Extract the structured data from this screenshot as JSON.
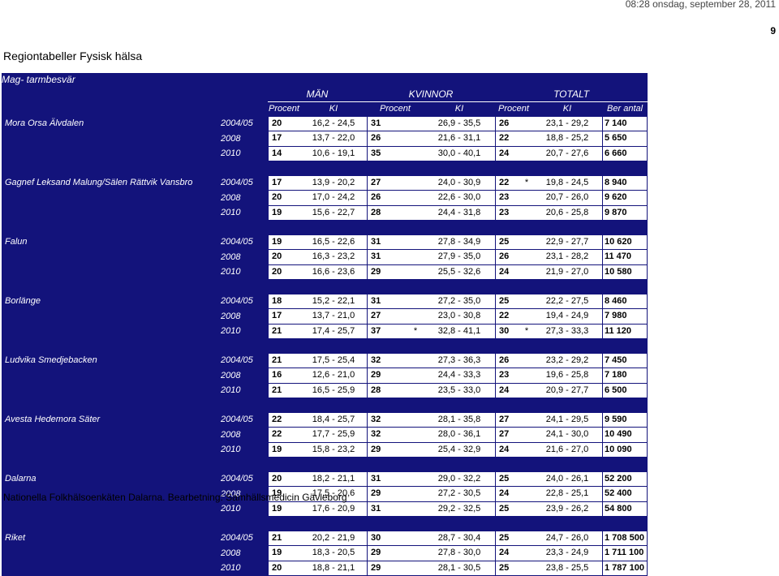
{
  "clock": "08:28  onsdag, september 28, 2011",
  "page_number": "9",
  "page_title": "Regiontabeller Fysisk hälsa",
  "table": {
    "caption": "Mag- tarmbesvär",
    "groups": [
      "MÄN",
      "KVINNOR",
      "TOTALT"
    ],
    "subheaders": [
      "Procent",
      "KI",
      "Procent",
      "KI",
      "Procent",
      "KI",
      "Ber antal"
    ],
    "regions": [
      {
        "name": "Mora Orsa Älvdalen",
        "rows": [
          {
            "year": "2004/05",
            "m_pct": "20",
            "m_star": "",
            "m_ki": "16,2  -  24,5",
            "k_pct": "31",
            "k_star": "",
            "k_ki": "26,9  -  35,5",
            "t_pct": "26",
            "t_star": "",
            "t_ki": "23,1  -  29,2",
            "ber": "7 140"
          },
          {
            "year": "2008",
            "m_pct": "17",
            "m_star": "",
            "m_ki": "13,7  -  22,0",
            "k_pct": "26",
            "k_star": "",
            "k_ki": "21,6  -  31,1",
            "t_pct": "22",
            "t_star": "",
            "t_ki": "18,8  -  25,2",
            "ber": "5 650"
          },
          {
            "year": "2010",
            "m_pct": "14",
            "m_star": "",
            "m_ki": "10,6  -  19,1",
            "k_pct": "35",
            "k_star": "",
            "k_ki": "30,0  -  40,1",
            "t_pct": "24",
            "t_star": "",
            "t_ki": "20,7  -  27,6",
            "ber": "6 660"
          }
        ]
      },
      {
        "name": "Gagnef Leksand Malung/Sälen Rättvik Vansbro",
        "rows": [
          {
            "year": "2004/05",
            "m_pct": "17",
            "m_star": "",
            "m_ki": "13,9  -  20,2",
            "k_pct": "27",
            "k_star": "",
            "k_ki": "24,0  -  30,9",
            "t_pct": "22",
            "t_star": "*",
            "t_ki": "19,8  -  24,5",
            "ber": "8 940"
          },
          {
            "year": "2008",
            "m_pct": "20",
            "m_star": "",
            "m_ki": "17,0  -  24,2",
            "k_pct": "26",
            "k_star": "",
            "k_ki": "22,6  -  30,0",
            "t_pct": "23",
            "t_star": "",
            "t_ki": "20,7  -  26,0",
            "ber": "9 620"
          },
          {
            "year": "2010",
            "m_pct": "19",
            "m_star": "",
            "m_ki": "15,6  -  22,7",
            "k_pct": "28",
            "k_star": "",
            "k_ki": "24,4  -  31,8",
            "t_pct": "23",
            "t_star": "",
            "t_ki": "20,6  -  25,8",
            "ber": "9 870"
          }
        ]
      },
      {
        "name": "Falun",
        "rows": [
          {
            "year": "2004/05",
            "m_pct": "19",
            "m_star": "",
            "m_ki": "16,5  -  22,6",
            "k_pct": "31",
            "k_star": "",
            "k_ki": "27,8  -  34,9",
            "t_pct": "25",
            "t_star": "",
            "t_ki": "22,9  -  27,7",
            "ber": "10 620"
          },
          {
            "year": "2008",
            "m_pct": "20",
            "m_star": "",
            "m_ki": "16,3  -  23,2",
            "k_pct": "31",
            "k_star": "",
            "k_ki": "27,9  -  35,0",
            "t_pct": "26",
            "t_star": "",
            "t_ki": "23,1  -  28,2",
            "ber": "11 470"
          },
          {
            "year": "2010",
            "m_pct": "20",
            "m_star": "",
            "m_ki": "16,6  -  23,6",
            "k_pct": "29",
            "k_star": "",
            "k_ki": "25,5  -  32,6",
            "t_pct": "24",
            "t_star": "",
            "t_ki": "21,9  -  27,0",
            "ber": "10 580"
          }
        ]
      },
      {
        "name": "Borlänge",
        "rows": [
          {
            "year": "2004/05",
            "m_pct": "18",
            "m_star": "",
            "m_ki": "15,2  -  22,1",
            "k_pct": "31",
            "k_star": "",
            "k_ki": "27,2  -  35,0",
            "t_pct": "25",
            "t_star": "",
            "t_ki": "22,2  -  27,5",
            "ber": "8 460"
          },
          {
            "year": "2008",
            "m_pct": "17",
            "m_star": "",
            "m_ki": "13,7  -  21,0",
            "k_pct": "27",
            "k_star": "",
            "k_ki": "23,0  -  30,8",
            "t_pct": "22",
            "t_star": "",
            "t_ki": "19,4  -  24,9",
            "ber": "7 980"
          },
          {
            "year": "2010",
            "m_pct": "21",
            "m_star": "",
            "m_ki": "17,4  -  25,7",
            "k_pct": "37",
            "k_star": "*",
            "k_ki": "32,8  -  41,1",
            "t_pct": "30",
            "t_star": "*",
            "t_ki": "27,3  -  33,3",
            "ber": "11 120"
          }
        ]
      },
      {
        "name": "Ludvika Smedjebacken",
        "rows": [
          {
            "year": "2004/05",
            "m_pct": "21",
            "m_star": "",
            "m_ki": "17,5  -  25,4",
            "k_pct": "32",
            "k_star": "",
            "k_ki": "27,3  -  36,3",
            "t_pct": "26",
            "t_star": "",
            "t_ki": "23,2  -  29,2",
            "ber": "7 450"
          },
          {
            "year": "2008",
            "m_pct": "16",
            "m_star": "",
            "m_ki": "12,6  -  21,0",
            "k_pct": "29",
            "k_star": "",
            "k_ki": "24,4  -  33,3",
            "t_pct": "23",
            "t_star": "",
            "t_ki": "19,6  -  25,8",
            "ber": "7 180"
          },
          {
            "year": "2010",
            "m_pct": "21",
            "m_star": "",
            "m_ki": "16,5  -  25,9",
            "k_pct": "28",
            "k_star": "",
            "k_ki": "23,5  -  33,0",
            "t_pct": "24",
            "t_star": "",
            "t_ki": "20,9  -  27,7",
            "ber": "6 500"
          }
        ]
      },
      {
        "name": "Avesta Hedemora Säter",
        "rows": [
          {
            "year": "2004/05",
            "m_pct": "22",
            "m_star": "",
            "m_ki": "18,4  -  25,7",
            "k_pct": "32",
            "k_star": "",
            "k_ki": "28,1  -  35,8",
            "t_pct": "27",
            "t_star": "",
            "t_ki": "24,1  -  29,5",
            "ber": "9 590"
          },
          {
            "year": "2008",
            "m_pct": "22",
            "m_star": "",
            "m_ki": "17,7  -  25,9",
            "k_pct": "32",
            "k_star": "",
            "k_ki": "28,0  -  36,1",
            "t_pct": "27",
            "t_star": "",
            "t_ki": "24,1  -  30,0",
            "ber": "10 490"
          },
          {
            "year": "2010",
            "m_pct": "19",
            "m_star": "",
            "m_ki": "15,8  -  23,2",
            "k_pct": "29",
            "k_star": "",
            "k_ki": "25,4  -  32,9",
            "t_pct": "24",
            "t_star": "",
            "t_ki": "21,6  -  27,0",
            "ber": "10 090"
          }
        ]
      },
      {
        "name": "Dalarna",
        "rows": [
          {
            "year": "2004/05",
            "m_pct": "20",
            "m_star": "",
            "m_ki": "18,2  -  21,1",
            "k_pct": "31",
            "k_star": "",
            "k_ki": "29,0  -  32,2",
            "t_pct": "25",
            "t_star": "",
            "t_ki": "24,0  -  26,1",
            "ber": "52 200"
          },
          {
            "year": "2008",
            "m_pct": "19",
            "m_star": "",
            "m_ki": "17,5  -  20,6",
            "k_pct": "29",
            "k_star": "",
            "k_ki": "27,2  -  30,5",
            "t_pct": "24",
            "t_star": "",
            "t_ki": "22,8  -  25,1",
            "ber": "52 400"
          },
          {
            "year": "2010",
            "m_pct": "19",
            "m_star": "",
            "m_ki": "17,6  -  20,9",
            "k_pct": "31",
            "k_star": "",
            "k_ki": "29,2  -  32,5",
            "t_pct": "25",
            "t_star": "",
            "t_ki": "23,9  -  26,2",
            "ber": "54 800"
          }
        ]
      },
      {
        "name": "Riket",
        "rows": [
          {
            "year": "2004/05",
            "m_pct": "21",
            "m_star": "",
            "m_ki": "20,2  -  21,9",
            "k_pct": "30",
            "k_star": "",
            "k_ki": "28,7  -  30,4",
            "t_pct": "25",
            "t_star": "",
            "t_ki": "24,7  -  26,0",
            "ber": "1 708 500"
          },
          {
            "year": "2008",
            "m_pct": "19",
            "m_star": "",
            "m_ki": "18,3  -  20,5",
            "k_pct": "29",
            "k_star": "",
            "k_ki": "27,8  -  30,0",
            "t_pct": "24",
            "t_star": "",
            "t_ki": "23,3  -  24,9",
            "ber": "1 711 100"
          },
          {
            "year": "2010",
            "m_pct": "20",
            "m_star": "",
            "m_ki": "18,8  -  21,1",
            "k_pct": "29",
            "k_star": "",
            "k_ki": "28,1  -  30,5",
            "t_pct": "25",
            "t_star": "",
            "t_ki": "23,8  -  25,5",
            "ber": "1 787 100"
          }
        ]
      }
    ]
  },
  "footer": "Nationella Folkhälsoenkäten Dalarna. Bearbetning: Samhällsmedicin Gävleborg",
  "colors": {
    "header_bg": "#13137b",
    "cell_bg": "#ffffff"
  }
}
